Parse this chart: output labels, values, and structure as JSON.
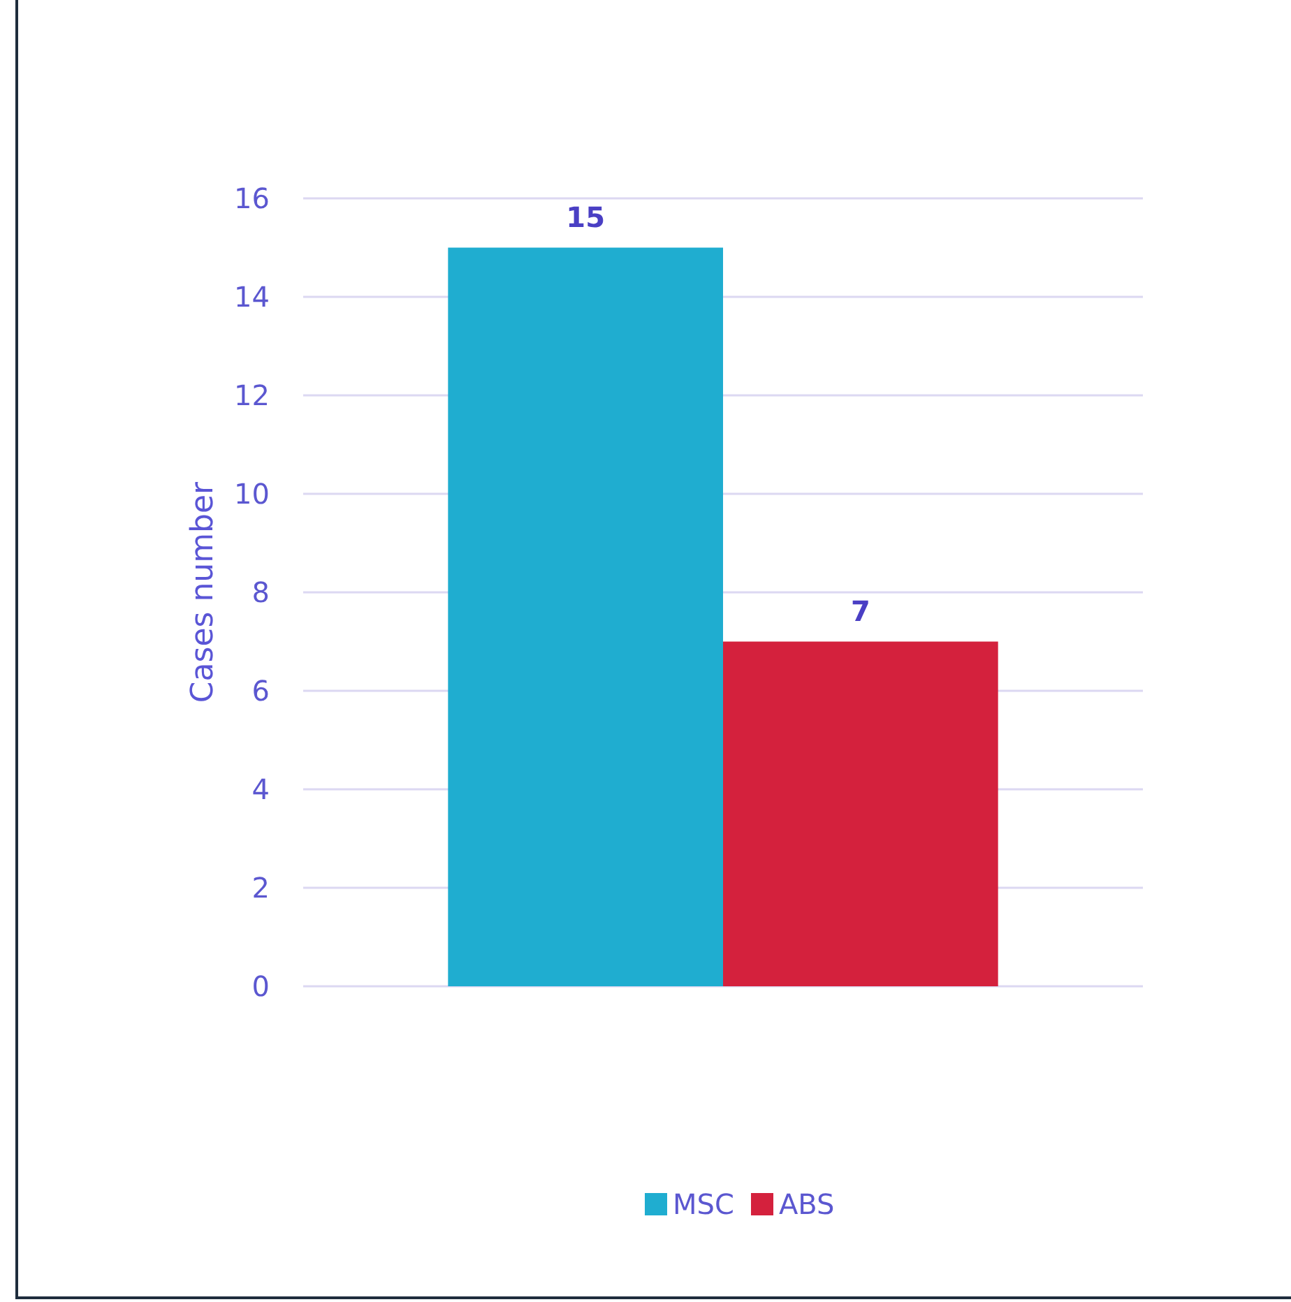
{
  "chart_data": {
    "type": "bar",
    "categories": [
      null
    ],
    "series": [
      {
        "name": "MSC",
        "color": "#1fadd0",
        "values": [
          15
        ]
      },
      {
        "name": "ABS",
        "color": "#d4213d",
        "values": [
          7
        ]
      }
    ],
    "ylim": [
      0,
      16
    ],
    "yticks": [
      0,
      2,
      4,
      6,
      8,
      10,
      12,
      14,
      16
    ],
    "ylabel": "Cases number",
    "grid": "y",
    "legend": "bottom",
    "data_labels": true,
    "tick_labels": "y"
  }
}
